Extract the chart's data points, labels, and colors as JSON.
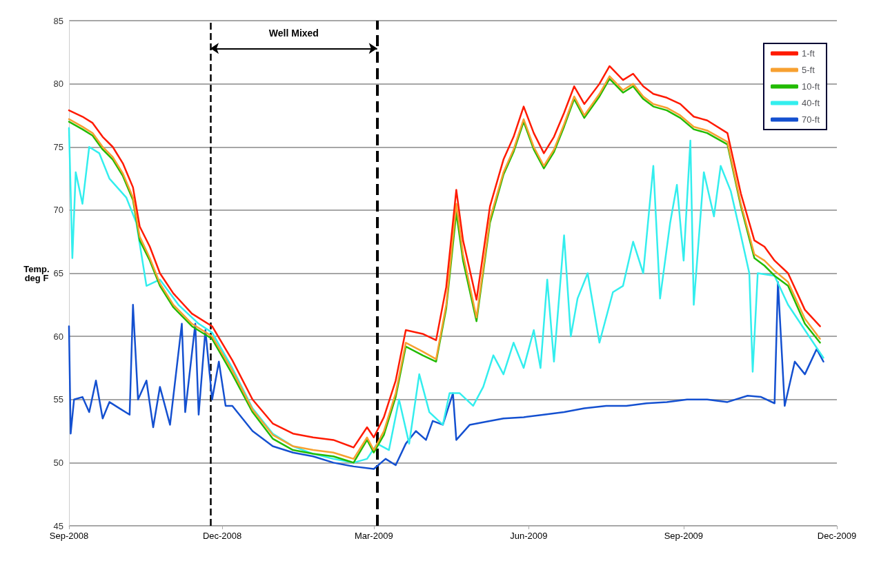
{
  "chart_data": {
    "type": "line",
    "ylabel": "Temp.\ndeg F",
    "x": [
      "2008-09-01",
      "2008-09-09",
      "2008-09-15",
      "2008-09-21",
      "2008-09-27",
      "2008-10-03",
      "2008-10-09",
      "2008-10-13",
      "2008-10-19",
      "2008-10-25",
      "2008-11-02",
      "2008-11-13",
      "2008-11-25",
      "2008-12-07",
      "2008-12-19",
      "2008-12-31",
      "2009-01-12",
      "2009-01-24",
      "2009-02-05",
      "2009-02-17",
      "2009-02-25",
      "2009-03-01",
      "2009-03-07",
      "2009-03-14",
      "2009-03-20",
      "2009-03-30",
      "2009-04-07",
      "2009-04-13",
      "2009-04-19",
      "2009-04-23",
      "2009-05-01",
      "2009-05-09",
      "2009-05-17",
      "2009-05-23",
      "2009-05-29",
      "2009-06-04",
      "2009-06-10",
      "2009-06-16",
      "2009-06-22",
      "2009-06-28",
      "2009-07-04",
      "2009-07-13",
      "2009-07-19",
      "2009-07-27",
      "2009-08-02",
      "2009-08-08",
      "2009-08-14",
      "2009-08-22",
      "2009-08-30",
      "2009-09-07",
      "2009-09-15",
      "2009-09-27",
      "2009-10-05",
      "2009-10-13",
      "2009-10-19",
      "2009-10-25",
      "2009-11-02",
      "2009-11-12",
      "2009-11-21"
    ],
    "series": [
      {
        "name": "1-ft",
        "color": "#ff1a00",
        "values": [
          77.9,
          77.4,
          76.9,
          75.8,
          75,
          73.7,
          71.8,
          68.7,
          67.1,
          65,
          63.4,
          61.8,
          60.8,
          58.1,
          55,
          53.1,
          52.3,
          52,
          51.8,
          51.2,
          52.8,
          52,
          53.6,
          56.5,
          60.5,
          60.2,
          59.7,
          63.9,
          71.6,
          67.6,
          62.9,
          70.3,
          74,
          75.8,
          78.2,
          76.1,
          74.5,
          75.8,
          77.7,
          79.8,
          78.4,
          80,
          81.4,
          80.3,
          80.8,
          79.8,
          79.2,
          78.9,
          78.4,
          77.4,
          77.1,
          76.1,
          71.3,
          67.6,
          67.1,
          66,
          65,
          62.1,
          60.8
        ]
      },
      {
        "name": "5-ft",
        "color": "#f7a030",
        "values": [
          77.2,
          76.6,
          76.1,
          75.0,
          74.2,
          72.9,
          71.0,
          67.9,
          66.2,
          64.2,
          62.5,
          61.0,
          60.0,
          57.3,
          54.2,
          52.2,
          51.3,
          51.0,
          50.8,
          50.3,
          52.0,
          51.0,
          52.5,
          55.5,
          59.5,
          58.8,
          58.2,
          62.5,
          70.5,
          66.5,
          61.5,
          69.3,
          73.0,
          74.8,
          77.2,
          75.0,
          73.5,
          74.8,
          76.8,
          79.0,
          77.5,
          79.2,
          80.6,
          79.5,
          80.0,
          79.0,
          78.4,
          78.1,
          77.5,
          76.6,
          76.3,
          75.4,
          70.5,
          66.5,
          66.0,
          65.2,
          64.3,
          61.4,
          59.8
        ]
      },
      {
        "name": "10-ft",
        "color": "#22bb00",
        "values": [
          77.0,
          76.4,
          75.9,
          74.8,
          74.0,
          72.7,
          70.8,
          67.6,
          66.0,
          64.0,
          62.3,
          60.8,
          59.8,
          57.0,
          54.0,
          51.9,
          51.0,
          50.7,
          50.5,
          50.0,
          51.8,
          50.8,
          52.2,
          55.2,
          59.2,
          58.5,
          58.0,
          62.2,
          69.8,
          66.0,
          61.2,
          69.0,
          72.8,
          74.6,
          77.0,
          74.8,
          73.3,
          74.6,
          76.6,
          78.8,
          77.3,
          79.0,
          80.4,
          79.3,
          79.8,
          78.8,
          78.2,
          77.9,
          77.3,
          76.4,
          76.1,
          75.2,
          70.3,
          66.2,
          65.6,
          64.8,
          64.0,
          61.0,
          59.5
        ]
      },
      {
        "name": "40-ft",
        "color": "#33eeee",
        "x": [
          "2008-09-01",
          "2008-09-03",
          "2008-09-05",
          "2008-09-09",
          "2008-09-13",
          "2008-09-19",
          "2008-09-25",
          "2008-10-05",
          "2008-10-11",
          "2008-10-17",
          "2008-10-25",
          "2008-11-05",
          "2008-11-17",
          "2008-11-25",
          "2008-12-07",
          "2008-12-19",
          "2008-12-31",
          "2009-01-12",
          "2009-01-24",
          "2009-02-05",
          "2009-02-17",
          "2009-02-25",
          "2009-03-03",
          "2009-03-10",
          "2009-03-16",
          "2009-03-22",
          "2009-03-28",
          "2009-04-03",
          "2009-04-11",
          "2009-04-15",
          "2009-04-21",
          "2009-04-29",
          "2009-05-05",
          "2009-05-11",
          "2009-05-17",
          "2009-05-23",
          "2009-05-29",
          "2009-06-04",
          "2009-06-08",
          "2009-06-12",
          "2009-06-16",
          "2009-06-22",
          "2009-06-26",
          "2009-06-30",
          "2009-07-06",
          "2009-07-13",
          "2009-07-21",
          "2009-07-27",
          "2009-08-02",
          "2009-08-08",
          "2009-08-14",
          "2009-08-18",
          "2009-08-24",
          "2009-08-28",
          "2009-09-01",
          "2009-09-05",
          "2009-09-07",
          "2009-09-13",
          "2009-09-19",
          "2009-09-23",
          "2009-09-29",
          "2009-10-05",
          "2009-10-10",
          "2009-10-12",
          "2009-10-15",
          "2009-10-25",
          "2009-11-02",
          "2009-11-12",
          "2009-11-23"
        ],
        "values": [
          76.5,
          66.2,
          73,
          70.5,
          75,
          74.5,
          72.5,
          71,
          69,
          64,
          64.5,
          62.5,
          61,
          60.3,
          57.5,
          54.3,
          52.3,
          51.3,
          50.7,
          50.3,
          50,
          50.3,
          51.5,
          51,
          55,
          51.5,
          57,
          54,
          53,
          55.5,
          55.5,
          54.5,
          56,
          58.5,
          57,
          59.5,
          57.5,
          60.5,
          57.5,
          64.5,
          58,
          68,
          60,
          63,
          65,
          59.5,
          63.5,
          64,
          67.5,
          65,
          73.5,
          63,
          69,
          72,
          66,
          75.5,
          62.5,
          73,
          69.5,
          73.5,
          71.5,
          68,
          65,
          57.2,
          65,
          64.8,
          62.5,
          60.5,
          58.3
        ]
      },
      {
        "name": "70-ft",
        "color": "#1450d0",
        "x": [
          "2008-09-01",
          "2008-09-02",
          "2008-09-04",
          "2008-09-09",
          "2008-09-13",
          "2008-09-17",
          "2008-09-21",
          "2008-09-25",
          "2008-10-01",
          "2008-10-07",
          "2008-10-09",
          "2008-10-12",
          "2008-10-17",
          "2008-10-21",
          "2008-10-25",
          "2008-10-31",
          "2008-11-07",
          "2008-11-09",
          "2008-11-15",
          "2008-11-17",
          "2008-11-21",
          "2008-11-25",
          "2008-11-29",
          "2008-12-03",
          "2008-12-07",
          "2008-12-13",
          "2008-12-19",
          "2008-12-31",
          "2009-01-12",
          "2009-01-24",
          "2009-02-05",
          "2009-02-17",
          "2009-03-01",
          "2009-03-08",
          "2009-03-14",
          "2009-03-20",
          "2009-03-26",
          "2009-04-01",
          "2009-04-05",
          "2009-04-11",
          "2009-04-17",
          "2009-04-19",
          "2009-04-27",
          "2009-05-05",
          "2009-05-17",
          "2009-05-29",
          "2009-06-10",
          "2009-06-22",
          "2009-07-04",
          "2009-07-17",
          "2009-07-29",
          "2009-08-10",
          "2009-08-22",
          "2009-09-03",
          "2009-09-15",
          "2009-09-27",
          "2009-10-09",
          "2009-10-17",
          "2009-10-25",
          "2009-10-27",
          "2009-10-31",
          "2009-11-06",
          "2009-11-12",
          "2009-11-19",
          "2009-11-23"
        ],
        "values": [
          60.8,
          52.3,
          55,
          55.2,
          54,
          56.5,
          53.5,
          54.8,
          54.3,
          53.8,
          62.5,
          55,
          56.5,
          52.8,
          56,
          53,
          61,
          54,
          61,
          53.8,
          60.5,
          55,
          58,
          54.5,
          54.5,
          53.5,
          52.5,
          51.3,
          50.8,
          50.5,
          50,
          49.7,
          49.5,
          50.3,
          49.8,
          51.5,
          52.5,
          51.8,
          53.3,
          53,
          55.5,
          51.8,
          53,
          53.2,
          53.5,
          53.6,
          53.8,
          54,
          54.3,
          54.5,
          54.5,
          54.7,
          54.8,
          55,
          55,
          54.8,
          55.3,
          55.2,
          54.7,
          64.3,
          54.5,
          58,
          57,
          59,
          58
        ]
      }
    ],
    "xlim": [
      "2008-09-01",
      "2009-12-01"
    ],
    "xticks": [
      {
        "value": "2008-09-01",
        "label": "Sep-2008"
      },
      {
        "value": "2008-12-01",
        "label": "Dec-2008"
      },
      {
        "value": "2009-03-01",
        "label": "Mar-2009"
      },
      {
        "value": "2009-06-01",
        "label": "Jun-2009"
      },
      {
        "value": "2009-09-01",
        "label": "Sep-2009"
      },
      {
        "value": "2009-12-01",
        "label": "Dec-2009"
      }
    ],
    "ylim": [
      45,
      85
    ],
    "yticks": [
      45,
      50,
      55,
      60,
      65,
      70,
      75,
      80,
      85
    ],
    "ref_lines": [
      {
        "axis": "x",
        "value": "2008-11-24",
        "color": "#000000",
        "line_style": "dashed"
      },
      {
        "axis": "x",
        "value": "2009-03-03",
        "color": "#000000",
        "line_style": "dashed"
      }
    ],
    "annotations": [
      "Well Mixed"
    ],
    "grid": "y",
    "legend": "top right",
    "marker": "none",
    "line_style": "solid"
  }
}
